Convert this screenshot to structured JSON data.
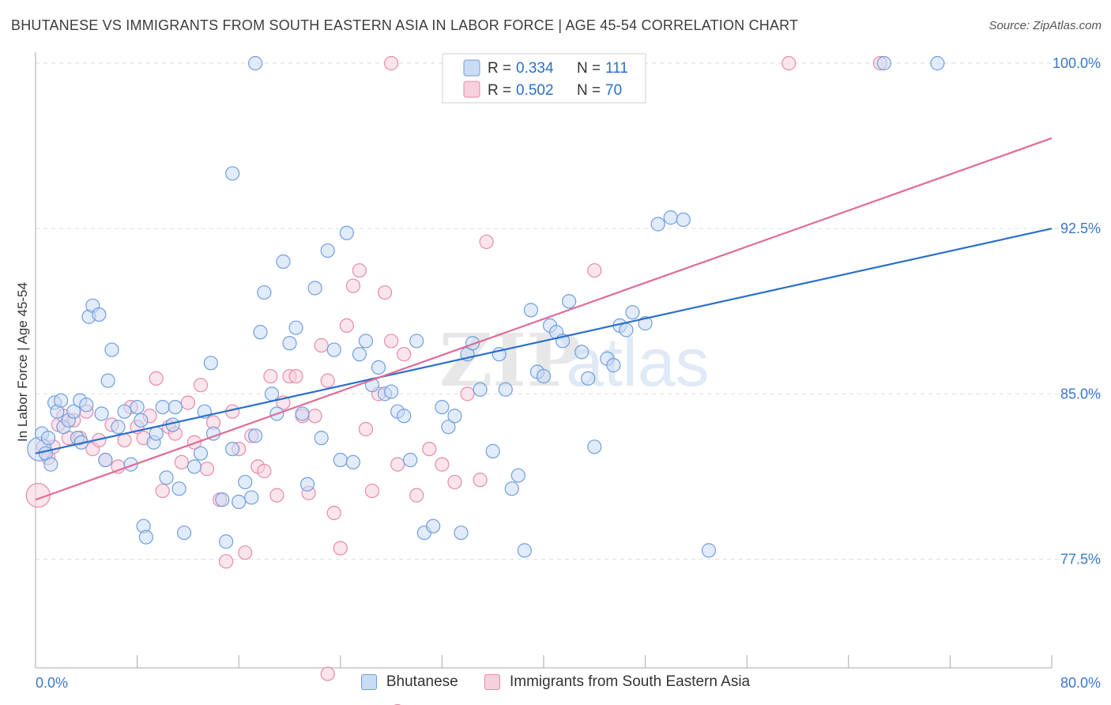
{
  "title": "BHUTANESE VS IMMIGRANTS FROM SOUTH EASTERN ASIA IN LABOR FORCE | AGE 45-54 CORRELATION CHART",
  "source": "Source: ZipAtlas.com",
  "watermark": {
    "zip": "ZIP",
    "atlas": "atlas"
  },
  "legend_top": [
    {
      "r_label": "R =",
      "r_value": "0.334",
      "n_label": "N =",
      "n_value": "111"
    },
    {
      "r_label": "R =",
      "r_value": "0.502",
      "n_label": "N =",
      "n_value": "70"
    }
  ],
  "chart_data": {
    "type": "scatter",
    "xlabel": "",
    "ylabel": "In Labor Force | Age 45-54",
    "xlim": [
      0,
      80
    ],
    "ylim": [
      70,
      100.7
    ],
    "x_tick_labels": [
      "0.0%",
      "80.0%"
    ],
    "y_ticks": [
      77.5,
      85.0,
      92.5,
      100.0
    ],
    "y_tick_labels": [
      "77.5%",
      "85.0%",
      "92.5%",
      "100.0%"
    ],
    "grid": true,
    "legend_position": "top-center",
    "series": [
      {
        "name": "Bhutanese",
        "color": "#6f9fdc",
        "fill": "#c9dbf5",
        "trend": {
          "color": "#2a6fcc",
          "x": [
            0,
            80
          ],
          "y": [
            82.3,
            92.5
          ]
        },
        "points": [
          [
            0.3,
            82.5
          ],
          [
            0.5,
            83.2
          ],
          [
            0.8,
            82.3
          ],
          [
            1.0,
            83.0
          ],
          [
            1.2,
            81.8
          ],
          [
            1.5,
            84.6
          ],
          [
            1.7,
            84.2
          ],
          [
            2.0,
            84.7
          ],
          [
            2.2,
            83.5
          ],
          [
            2.6,
            83.8
          ],
          [
            3.0,
            84.2
          ],
          [
            3.3,
            83.0
          ],
          [
            3.5,
            84.7
          ],
          [
            3.6,
            82.8
          ],
          [
            4.0,
            84.5
          ],
          [
            4.2,
            88.5
          ],
          [
            4.5,
            89.0
          ],
          [
            5.0,
            88.6
          ],
          [
            5.2,
            84.1
          ],
          [
            5.5,
            82.0
          ],
          [
            5.7,
            85.6
          ],
          [
            6.0,
            87.0
          ],
          [
            6.5,
            83.5
          ],
          [
            7.0,
            84.2
          ],
          [
            7.5,
            81.8
          ],
          [
            8.0,
            84.4
          ],
          [
            8.3,
            83.8
          ],
          [
            8.5,
            79.0
          ],
          [
            8.7,
            78.5
          ],
          [
            9.3,
            82.8
          ],
          [
            9.5,
            83.2
          ],
          [
            10.0,
            84.4
          ],
          [
            10.3,
            81.2
          ],
          [
            10.8,
            83.6
          ],
          [
            11.0,
            84.4
          ],
          [
            11.3,
            80.7
          ],
          [
            11.7,
            78.7
          ],
          [
            12.5,
            81.7
          ],
          [
            13.0,
            82.3
          ],
          [
            13.3,
            84.2
          ],
          [
            13.8,
            86.4
          ],
          [
            14.0,
            83.2
          ],
          [
            14.7,
            80.2
          ],
          [
            15.0,
            78.3
          ],
          [
            15.5,
            82.5
          ],
          [
            16.0,
            80.1
          ],
          [
            16.5,
            81.0
          ],
          [
            17.0,
            80.3
          ],
          [
            17.3,
            83.1
          ],
          [
            17.7,
            87.8
          ],
          [
            18.0,
            89.6
          ],
          [
            18.6,
            85.0
          ],
          [
            19.0,
            84.1
          ],
          [
            19.5,
            91.0
          ],
          [
            20.0,
            87.3
          ],
          [
            20.5,
            88.0
          ],
          [
            21.0,
            84.1
          ],
          [
            21.4,
            80.9
          ],
          [
            22.0,
            89.8
          ],
          [
            22.5,
            83.0
          ],
          [
            23.0,
            91.5
          ],
          [
            23.5,
            87.0
          ],
          [
            24.0,
            82.0
          ],
          [
            24.5,
            92.3
          ],
          [
            25.0,
            81.9
          ],
          [
            25.5,
            86.8
          ],
          [
            26.0,
            87.4
          ],
          [
            26.5,
            85.4
          ],
          [
            27.0,
            86.2
          ],
          [
            27.5,
            85.0
          ],
          [
            28.0,
            85.1
          ],
          [
            28.5,
            84.2
          ],
          [
            29.0,
            84.0
          ],
          [
            29.5,
            82.0
          ],
          [
            30.0,
            87.4
          ],
          [
            30.6,
            78.7
          ],
          [
            31.3,
            79.0
          ],
          [
            32.0,
            84.4
          ],
          [
            32.5,
            83.5
          ],
          [
            33.0,
            84.0
          ],
          [
            33.5,
            78.7
          ],
          [
            34.0,
            86.8
          ],
          [
            34.4,
            87.3
          ],
          [
            35.0,
            85.2
          ],
          [
            36.0,
            82.4
          ],
          [
            36.5,
            86.8
          ],
          [
            37.0,
            85.2
          ],
          [
            37.5,
            80.7
          ],
          [
            38.0,
            81.3
          ],
          [
            38.5,
            77.9
          ],
          [
            39.0,
            88.8
          ],
          [
            39.5,
            86.0
          ],
          [
            40.0,
            85.8
          ],
          [
            40.5,
            88.1
          ],
          [
            41.0,
            87.8
          ],
          [
            41.5,
            87.4
          ],
          [
            42.0,
            89.2
          ],
          [
            43.0,
            86.9
          ],
          [
            43.5,
            85.7
          ],
          [
            44.0,
            82.6
          ],
          [
            45.0,
            86.6
          ],
          [
            45.5,
            86.3
          ],
          [
            46.0,
            88.1
          ],
          [
            46.5,
            87.9
          ],
          [
            47.0,
            88.7
          ],
          [
            48.0,
            88.2
          ],
          [
            49.0,
            92.7
          ],
          [
            50.0,
            93.0
          ],
          [
            51.0,
            92.9
          ],
          [
            53.0,
            77.9
          ],
          [
            15.5,
            95.0
          ],
          [
            17.3,
            100.0
          ],
          [
            33.0,
            100.0
          ],
          [
            66.8,
            100.0
          ],
          [
            71.0,
            100.0
          ]
        ]
      },
      {
        "name": "Immigrants from South Eastern Asia",
        "color": "#e68aab",
        "fill": "#f8cfdd",
        "trend": {
          "color": "#e06b98",
          "x": [
            0,
            80
          ],
          "y": [
            80.2,
            96.6
          ]
        },
        "points": [
          [
            0.2,
            80.4
          ],
          [
            0.6,
            82.6
          ],
          [
            1.0,
            82.1
          ],
          [
            1.4,
            82.6
          ],
          [
            1.8,
            83.6
          ],
          [
            2.2,
            84.0
          ],
          [
            2.6,
            83.0
          ],
          [
            3.0,
            83.8
          ],
          [
            3.5,
            83.0
          ],
          [
            4.0,
            84.2
          ],
          [
            4.5,
            82.5
          ],
          [
            5.0,
            82.9
          ],
          [
            5.5,
            82.0
          ],
          [
            6.0,
            83.6
          ],
          [
            6.5,
            81.7
          ],
          [
            7.0,
            82.9
          ],
          [
            7.5,
            84.4
          ],
          [
            8.0,
            83.5
          ],
          [
            8.5,
            83.0
          ],
          [
            9.0,
            84.0
          ],
          [
            9.5,
            85.7
          ],
          [
            10.0,
            80.6
          ],
          [
            10.5,
            83.5
          ],
          [
            11.0,
            83.2
          ],
          [
            11.5,
            81.9
          ],
          [
            12.0,
            84.6
          ],
          [
            12.5,
            82.8
          ],
          [
            13.0,
            85.4
          ],
          [
            13.5,
            81.6
          ],
          [
            14.0,
            83.7
          ],
          [
            14.5,
            80.2
          ],
          [
            15.0,
            77.4
          ],
          [
            15.5,
            84.2
          ],
          [
            16.0,
            82.5
          ],
          [
            16.5,
            77.8
          ],
          [
            17.0,
            83.1
          ],
          [
            17.5,
            81.7
          ],
          [
            18.0,
            81.5
          ],
          [
            18.5,
            85.8
          ],
          [
            19.0,
            80.4
          ],
          [
            19.5,
            84.6
          ],
          [
            20.0,
            85.8
          ],
          [
            20.5,
            85.8
          ],
          [
            21.0,
            84.0
          ],
          [
            21.5,
            80.5
          ],
          [
            22.0,
            84.0
          ],
          [
            22.5,
            87.2
          ],
          [
            23.0,
            85.6
          ],
          [
            23.5,
            79.6
          ],
          [
            24.0,
            78.0
          ],
          [
            24.5,
            88.1
          ],
          [
            25.0,
            89.9
          ],
          [
            25.5,
            90.6
          ],
          [
            26.0,
            83.4
          ],
          [
            26.5,
            80.6
          ],
          [
            27.0,
            85.0
          ],
          [
            27.5,
            89.6
          ],
          [
            28.0,
            87.4
          ],
          [
            28.5,
            81.8
          ],
          [
            29.0,
            86.8
          ],
          [
            30.0,
            80.4
          ],
          [
            31.0,
            82.5
          ],
          [
            32.0,
            81.8
          ],
          [
            33.0,
            81.0
          ],
          [
            34.0,
            85.0
          ],
          [
            35.0,
            81.1
          ],
          [
            35.5,
            91.9
          ],
          [
            44.0,
            90.6
          ],
          [
            23.0,
            72.3
          ],
          [
            28.5,
            70.6
          ]
        ],
        "top_points": [
          28.0,
          59.3,
          66.5
        ]
      }
    ]
  }
}
